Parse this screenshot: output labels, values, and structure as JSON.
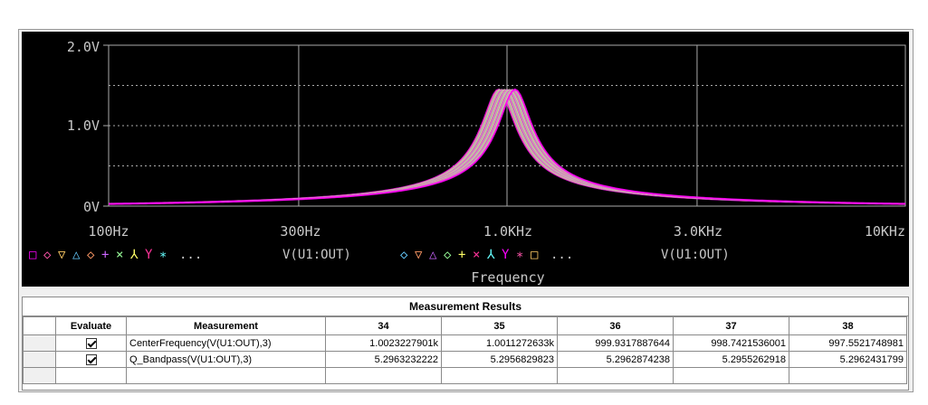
{
  "plot": {
    "y_ticks": [
      "2.0V",
      "1.0V",
      "0V"
    ],
    "x_ticks": [
      "100Hz",
      "300Hz",
      "1.0KHz",
      "3.0KHz",
      "10KHz"
    ],
    "x_label": "Frequency",
    "legend_trace_label": "V(U1:OUT)",
    "legend_markers_1": [
      "□",
      "◇",
      "▽",
      "△",
      "◇",
      "+",
      "×",
      "⅄",
      "Y",
      "∗"
    ],
    "legend_markers_2": [
      "◇",
      "▽",
      "△",
      "◇",
      "+",
      "×",
      "⅄",
      "Y",
      "∗",
      "□"
    ],
    "legend_ellipsis": "...",
    "background": "#000000",
    "grid_color": "#aaaaaa",
    "text_color": "#c8c8c8",
    "trace_colors": [
      "#ff00ff",
      "#ff55aa",
      "#ffcc66",
      "#66ccff",
      "#ff9966",
      "#cc66ff",
      "#99ff99",
      "#ffff66",
      "#ff3399",
      "#66ffff"
    ]
  },
  "chart_data": {
    "type": "line",
    "title": "",
    "xlabel": "Frequency",
    "ylabel": "",
    "xscale": "log",
    "xlim": [
      100,
      10000
    ],
    "ylim": [
      0,
      2.0
    ],
    "series": [
      {
        "center_hz": 1002.3,
        "q": 5.296,
        "peak_v": 1.45
      },
      {
        "center_hz": 1001.1,
        "q": 5.296,
        "peak_v": 1.45
      },
      {
        "center_hz": 999.9,
        "q": 5.296,
        "peak_v": 1.45
      },
      {
        "center_hz": 998.7,
        "q": 5.296,
        "peak_v": 1.45
      },
      {
        "center_hz": 997.6,
        "q": 5.296,
        "peak_v": 1.45
      }
    ]
  },
  "results": {
    "title": "Measurement Results",
    "headers": [
      "Evaluate",
      "Measurement",
      "34",
      "35",
      "36",
      "37",
      "38"
    ],
    "rows": [
      {
        "evaluate": true,
        "measurement": "CenterFrequency(V(U1:OUT),3)",
        "values": [
          "1.0023227901k",
          "1.0011272633k",
          "999.9317887644",
          "998.7421536001",
          "997.5521748981"
        ]
      },
      {
        "evaluate": true,
        "measurement": "Q_Bandpass(V(U1:OUT),3)",
        "values": [
          "5.2963232222",
          "5.2956829823",
          "5.2962874238",
          "5.2955262918",
          "5.2962431799"
        ]
      }
    ]
  }
}
